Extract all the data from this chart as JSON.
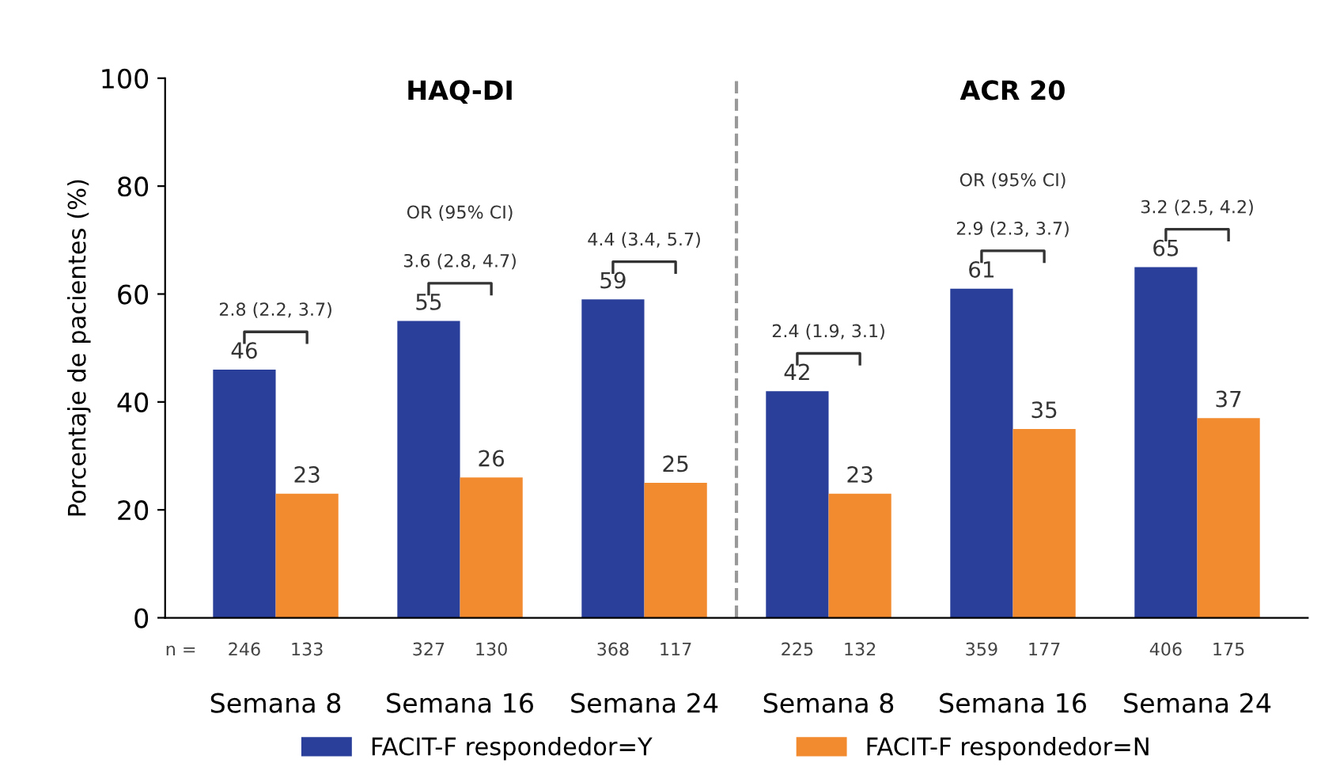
{
  "chart_data": {
    "type": "bar",
    "ylabel": "Porcentaje de pacientes (%)",
    "categories": [
      "Semana 8",
      "Semana 16",
      "Semana 24",
      "Semana 8",
      "Semana 16",
      "Semana 24"
    ],
    "series": [
      {
        "name": "FACIT-F respondedor=Y",
        "color": "#2a3f9a",
        "values": [
          46,
          55,
          59,
          42,
          61,
          65
        ]
      },
      {
        "name": "FACIT-F respondedor=N",
        "color": "#f28a30",
        "values": [
          23,
          26,
          25,
          23,
          35,
          37
        ]
      }
    ],
    "ylim": [
      0,
      100
    ],
    "yticks": [
      0,
      20,
      40,
      60,
      80,
      100
    ],
    "grid": false,
    "legend": "bottom",
    "data_labels": true,
    "annotations": [
      "HAQ-DI",
      "ACR 20",
      "OR (95% CI)",
      "OR (95% CI)",
      "2.8 (2.2, 3.7)",
      "3.6 (2.8, 4.7)",
      "4.4 (3.4, 5.7)",
      "2.4 (1.9, 3.1)",
      "2.9 (2.3, 3.7)",
      "3.2 (2.5, 4.2)",
      "n =",
      "246",
      "133",
      "327",
      "130",
      "368",
      "117",
      "225",
      "132",
      "359",
      "177",
      "406",
      "175"
    ]
  }
}
